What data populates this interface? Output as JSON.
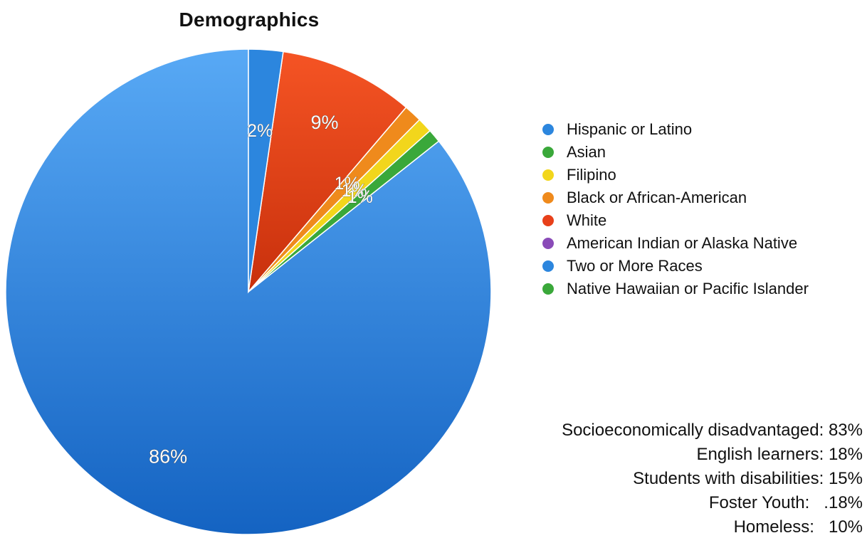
{
  "chart_data": {
    "type": "pie",
    "title": "Demographics",
    "start_angle_deg": 90,
    "direction": "clockwise",
    "slices": [
      {
        "label": "Hispanic or Latino",
        "value": 86,
        "display": "86%",
        "color": "#2c86de"
      },
      {
        "label": "Asian",
        "value": 0.9,
        "display": "1%",
        "color": "#3aa83a"
      },
      {
        "label": "Filipino",
        "value": 1,
        "display": "1%",
        "color": "#f2d61c"
      },
      {
        "label": "Black or African-American",
        "value": 1.2,
        "display": "1%",
        "color": "#ef8a1c"
      },
      {
        "label": "White",
        "value": 9,
        "display": "9%",
        "color": "#e8401a"
      },
      {
        "label": "American Indian or Alaska Native",
        "value": 0,
        "display": "",
        "color": "#8a4bb8"
      },
      {
        "label": "Two or More Races",
        "value": 2.3,
        "display": "2%",
        "color": "#2c86de"
      },
      {
        "label": "Native Hawaiian or Pacific Islander",
        "value": 0,
        "display": "",
        "color": "#3aa83a"
      }
    ],
    "legend_position": "right"
  },
  "stats": [
    {
      "text": "Socioeconomically disadvantaged: 83%"
    },
    {
      "text": "English learners: 18%"
    },
    {
      "text": "Students with disabilities: 15%"
    },
    {
      "text": "Foster Youth:   .18%"
    },
    {
      "text": "Homeless:   10%"
    }
  ]
}
